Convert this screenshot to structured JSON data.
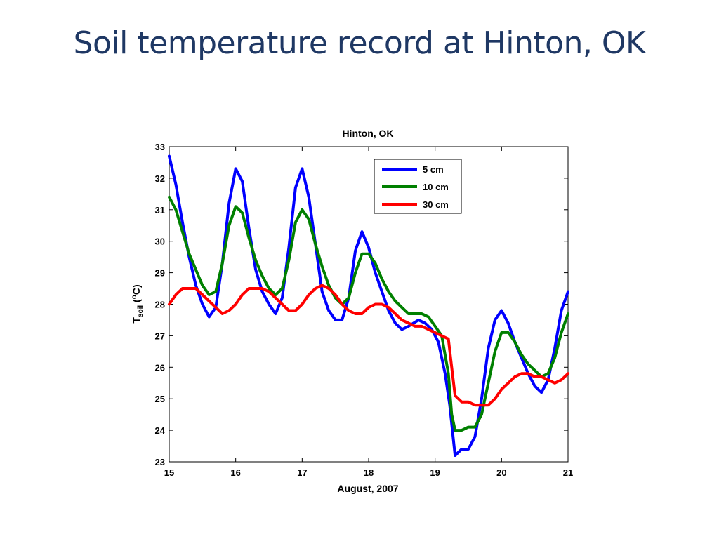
{
  "slide": {
    "title": "Soil temperature record at Hinton, OK"
  },
  "chart_data": {
    "type": "line",
    "title": "Hinton, OK",
    "xlabel": "August, 2007",
    "ylabel_main": "T",
    "ylabel_sub": "soil",
    "ylabel_open": " (",
    "ylabel_sup": "o",
    "ylabel_close": "C)",
    "xlim": [
      15,
      21
    ],
    "ylim": [
      23,
      33
    ],
    "xticks": [
      "15",
      "16",
      "17",
      "18",
      "19",
      "20",
      "21"
    ],
    "yticks": [
      "23",
      "24",
      "25",
      "26",
      "27",
      "28",
      "29",
      "30",
      "31",
      "32",
      "33"
    ],
    "legend_position": "top-right",
    "grid": false,
    "series": [
      {
        "name": "5 cm",
        "color": "#0000ff",
        "points": [
          [
            15.0,
            32.7
          ],
          [
            15.1,
            31.8
          ],
          [
            15.2,
            30.6
          ],
          [
            15.3,
            29.5
          ],
          [
            15.4,
            28.6
          ],
          [
            15.5,
            28.0
          ],
          [
            15.6,
            27.6
          ],
          [
            15.7,
            27.9
          ],
          [
            15.8,
            29.3
          ],
          [
            15.9,
            31.2
          ],
          [
            16.0,
            32.3
          ],
          [
            16.1,
            31.9
          ],
          [
            16.2,
            30.4
          ],
          [
            16.3,
            29.1
          ],
          [
            16.4,
            28.4
          ],
          [
            16.5,
            28.0
          ],
          [
            16.6,
            27.7
          ],
          [
            16.7,
            28.2
          ],
          [
            16.8,
            29.8
          ],
          [
            16.9,
            31.7
          ],
          [
            17.0,
            32.3
          ],
          [
            17.1,
            31.4
          ],
          [
            17.2,
            29.9
          ],
          [
            17.3,
            28.4
          ],
          [
            17.4,
            27.8
          ],
          [
            17.5,
            27.5
          ],
          [
            17.6,
            27.5
          ],
          [
            17.7,
            28.2
          ],
          [
            17.8,
            29.7
          ],
          [
            17.9,
            30.3
          ],
          [
            18.0,
            29.8
          ],
          [
            18.1,
            29.0
          ],
          [
            18.2,
            28.4
          ],
          [
            18.3,
            27.8
          ],
          [
            18.4,
            27.4
          ],
          [
            18.5,
            27.2
          ],
          [
            18.6,
            27.3
          ],
          [
            18.75,
            27.5
          ],
          [
            18.85,
            27.4
          ],
          [
            18.95,
            27.2
          ],
          [
            19.05,
            26.8
          ],
          [
            19.15,
            25.8
          ],
          [
            19.22,
            24.8
          ],
          [
            19.3,
            23.2
          ],
          [
            19.4,
            23.4
          ],
          [
            19.5,
            23.4
          ],
          [
            19.6,
            23.8
          ],
          [
            19.7,
            25.0
          ],
          [
            19.8,
            26.6
          ],
          [
            19.9,
            27.5
          ],
          [
            20.0,
            27.8
          ],
          [
            20.1,
            27.4
          ],
          [
            20.2,
            26.8
          ],
          [
            20.3,
            26.3
          ],
          [
            20.4,
            25.8
          ],
          [
            20.5,
            25.4
          ],
          [
            20.6,
            25.2
          ],
          [
            20.7,
            25.6
          ],
          [
            20.8,
            26.6
          ],
          [
            20.9,
            27.8
          ],
          [
            21.0,
            28.4
          ]
        ]
      },
      {
        "name": "10 cm",
        "color": "#008000",
        "points": [
          [
            15.0,
            31.4
          ],
          [
            15.1,
            31.0
          ],
          [
            15.2,
            30.3
          ],
          [
            15.3,
            29.6
          ],
          [
            15.4,
            29.1
          ],
          [
            15.5,
            28.6
          ],
          [
            15.6,
            28.3
          ],
          [
            15.7,
            28.4
          ],
          [
            15.8,
            29.3
          ],
          [
            15.9,
            30.5
          ],
          [
            16.0,
            31.1
          ],
          [
            16.1,
            30.9
          ],
          [
            16.2,
            30.1
          ],
          [
            16.3,
            29.4
          ],
          [
            16.4,
            28.9
          ],
          [
            16.5,
            28.5
          ],
          [
            16.6,
            28.3
          ],
          [
            16.7,
            28.5
          ],
          [
            16.8,
            29.4
          ],
          [
            16.9,
            30.6
          ],
          [
            17.0,
            31.0
          ],
          [
            17.1,
            30.7
          ],
          [
            17.2,
            29.9
          ],
          [
            17.3,
            29.2
          ],
          [
            17.4,
            28.6
          ],
          [
            17.5,
            28.2
          ],
          [
            17.6,
            28.0
          ],
          [
            17.7,
            28.2
          ],
          [
            17.8,
            29.0
          ],
          [
            17.9,
            29.6
          ],
          [
            18.0,
            29.6
          ],
          [
            18.1,
            29.3
          ],
          [
            18.2,
            28.8
          ],
          [
            18.3,
            28.4
          ],
          [
            18.4,
            28.1
          ],
          [
            18.5,
            27.9
          ],
          [
            18.6,
            27.7
          ],
          [
            18.7,
            27.7
          ],
          [
            18.8,
            27.7
          ],
          [
            18.9,
            27.6
          ],
          [
            19.0,
            27.3
          ],
          [
            19.1,
            27.0
          ],
          [
            19.2,
            25.8
          ],
          [
            19.25,
            24.5
          ],
          [
            19.3,
            24.0
          ],
          [
            19.4,
            24.0
          ],
          [
            19.5,
            24.1
          ],
          [
            19.6,
            24.1
          ],
          [
            19.7,
            24.5
          ],
          [
            19.8,
            25.5
          ],
          [
            19.9,
            26.5
          ],
          [
            20.0,
            27.1
          ],
          [
            20.1,
            27.1
          ],
          [
            20.2,
            26.8
          ],
          [
            20.3,
            26.4
          ],
          [
            20.4,
            26.1
          ],
          [
            20.5,
            25.9
          ],
          [
            20.6,
            25.7
          ],
          [
            20.7,
            25.8
          ],
          [
            20.8,
            26.3
          ],
          [
            20.9,
            27.1
          ],
          [
            21.0,
            27.7
          ]
        ]
      },
      {
        "name": "30 cm",
        "color": "#ff0000",
        "points": [
          [
            15.0,
            28.0
          ],
          [
            15.1,
            28.3
          ],
          [
            15.2,
            28.5
          ],
          [
            15.3,
            28.5
          ],
          [
            15.4,
            28.5
          ],
          [
            15.5,
            28.3
          ],
          [
            15.6,
            28.1
          ],
          [
            15.7,
            27.9
          ],
          [
            15.8,
            27.7
          ],
          [
            15.9,
            27.8
          ],
          [
            16.0,
            28.0
          ],
          [
            16.1,
            28.3
          ],
          [
            16.2,
            28.5
          ],
          [
            16.3,
            28.5
          ],
          [
            16.4,
            28.5
          ],
          [
            16.5,
            28.4
          ],
          [
            16.6,
            28.2
          ],
          [
            16.7,
            28.0
          ],
          [
            16.8,
            27.8
          ],
          [
            16.9,
            27.8
          ],
          [
            17.0,
            28.0
          ],
          [
            17.1,
            28.3
          ],
          [
            17.2,
            28.5
          ],
          [
            17.3,
            28.6
          ],
          [
            17.4,
            28.5
          ],
          [
            17.5,
            28.3
          ],
          [
            17.6,
            28.0
          ],
          [
            17.7,
            27.8
          ],
          [
            17.8,
            27.7
          ],
          [
            17.9,
            27.7
          ],
          [
            18.0,
            27.9
          ],
          [
            18.1,
            28.0
          ],
          [
            18.2,
            28.0
          ],
          [
            18.3,
            27.9
          ],
          [
            18.4,
            27.7
          ],
          [
            18.5,
            27.5
          ],
          [
            18.6,
            27.4
          ],
          [
            18.7,
            27.3
          ],
          [
            18.8,
            27.3
          ],
          [
            18.9,
            27.2
          ],
          [
            19.0,
            27.1
          ],
          [
            19.1,
            27.0
          ],
          [
            19.2,
            26.9
          ],
          [
            19.25,
            26.0
          ],
          [
            19.3,
            25.1
          ],
          [
            19.4,
            24.9
          ],
          [
            19.5,
            24.9
          ],
          [
            19.6,
            24.8
          ],
          [
            19.7,
            24.8
          ],
          [
            19.8,
            24.8
          ],
          [
            19.9,
            25.0
          ],
          [
            20.0,
            25.3
          ],
          [
            20.1,
            25.5
          ],
          [
            20.2,
            25.7
          ],
          [
            20.3,
            25.8
          ],
          [
            20.4,
            25.8
          ],
          [
            20.5,
            25.7
          ],
          [
            20.6,
            25.7
          ],
          [
            20.7,
            25.6
          ],
          [
            20.8,
            25.5
          ],
          [
            20.9,
            25.6
          ],
          [
            21.0,
            25.8
          ]
        ]
      }
    ]
  }
}
